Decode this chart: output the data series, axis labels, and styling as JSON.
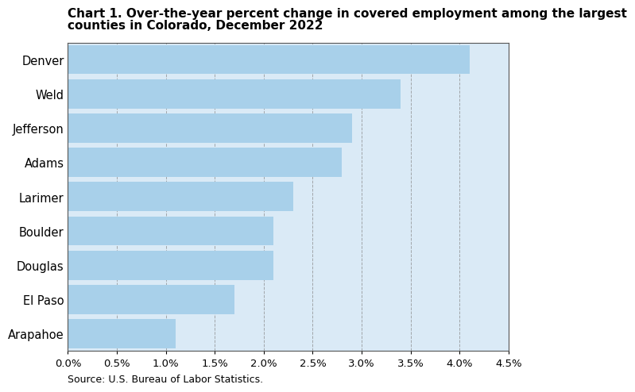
{
  "title_line1": "Chart 1. Over-the-year percent change in covered employment among the largest",
  "title_line2": "counties in Colorado, December 2022",
  "categories": [
    "Arapahoe",
    "El Paso",
    "Douglas",
    "Boulder",
    "Larimer",
    "Adams",
    "Jefferson",
    "Weld",
    "Denver"
  ],
  "values": [
    1.1,
    1.7,
    2.1,
    2.1,
    2.3,
    2.8,
    2.9,
    3.4,
    4.1
  ],
  "bar_color": "#a8d0ea",
  "plot_bg_color": "#ddeeff",
  "xlim": [
    0,
    4.5
  ],
  "xticks": [
    0.0,
    0.5,
    1.0,
    1.5,
    2.0,
    2.5,
    3.0,
    3.5,
    4.0,
    4.5
  ],
  "source": "Source: U.S. Bureau of Labor Statistics.",
  "background_color": "#ffffff",
  "grid_color": "#888888",
  "bar_height": 0.85,
  "title_fontsize": 11,
  "tick_fontsize": 9.5,
  "source_fontsize": 9,
  "label_fontsize": 10.5
}
